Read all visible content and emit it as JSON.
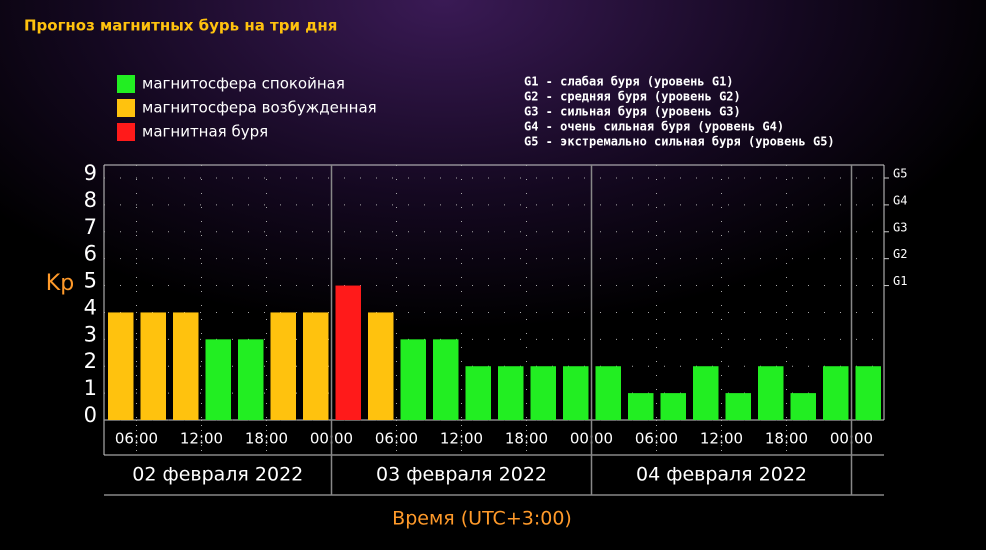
{
  "chart_data": {
    "type": "bar",
    "title": "Прогноз магнитных бурь на три дня",
    "ylabel": "Kp",
    "xlabel": "Время (UTC+3:00)",
    "legend": [
      {
        "name": "магнитосфера спокойная",
        "color": "#22ee22"
      },
      {
        "name": "магнитосфера возбужденная",
        "color": "#ffc20e"
      },
      {
        "name": "магнитная буря",
        "color": "#ff1a1a"
      }
    ],
    "scale_notes": [
      "G1 - слабая буря (уровень G1)",
      "G2 - средняя буря (уровень G2)",
      "G3 - сильная буря (уровень G3)",
      "G4 - очень сильная буря (уровень G4)",
      "G5 - экстремально сильная буря (уровень G5)"
    ],
    "x": [
      0,
      3,
      6,
      9,
      12,
      15,
      18,
      21,
      24,
      27,
      30,
      33,
      36,
      39,
      42,
      45,
      48,
      51,
      54,
      57,
      60,
      63,
      66,
      69
    ],
    "values": [
      4,
      4,
      4,
      3,
      3,
      4,
      4,
      5,
      4,
      3,
      3,
      2,
      2,
      2,
      2,
      2,
      1,
      1,
      2,
      1,
      2,
      1,
      2,
      2
    ],
    "colors": [
      "#ffc20e",
      "#ffc20e",
      "#ffc20e",
      "#22ee22",
      "#22ee22",
      "#ffc20e",
      "#ffc20e",
      "#ff1a1a",
      "#ffc20e",
      "#22ee22",
      "#22ee22",
      "#22ee22",
      "#22ee22",
      "#22ee22",
      "#22ee22",
      "#22ee22",
      "#22ee22",
      "#22ee22",
      "#22ee22",
      "#22ee22",
      "#22ee22",
      "#22ee22",
      "#22ee22",
      "#22ee22"
    ],
    "xlim": [
      0,
      72
    ],
    "xticks": [
      {
        "value": 3,
        "label": "06:00"
      },
      {
        "value": 9,
        "label": "12:00"
      },
      {
        "value": 15,
        "label": "18:00"
      },
      {
        "value": 21,
        "label": "00:00"
      },
      {
        "value": 27,
        "label": "06:00"
      },
      {
        "value": 33,
        "label": "12:00"
      },
      {
        "value": 39,
        "label": "18:00"
      },
      {
        "value": 45,
        "label": "00:00"
      },
      {
        "value": 51,
        "label": "06:00"
      },
      {
        "value": 57,
        "label": "12:00"
      },
      {
        "value": 63,
        "label": "18:00"
      },
      {
        "value": 69,
        "label": "00:00"
      }
    ],
    "day_boundaries": [
      21,
      45,
      69
    ],
    "days": [
      "02 февраля 2022",
      "03 февраля 2022",
      "04 февраля 2022"
    ],
    "ylim": [
      0,
      9
    ],
    "yticks": [
      0,
      1,
      2,
      3,
      4,
      5,
      6,
      7,
      8,
      9
    ],
    "y2lim": [
      0,
      9
    ],
    "y2ticks": [
      {
        "value": 5,
        "label": "G1"
      },
      {
        "value": 6,
        "label": "G2"
      },
      {
        "value": 7,
        "label": "G3"
      },
      {
        "value": 8,
        "label": "G4"
      },
      {
        "value": 9,
        "label": "G5"
      }
    ],
    "grid": true
  }
}
